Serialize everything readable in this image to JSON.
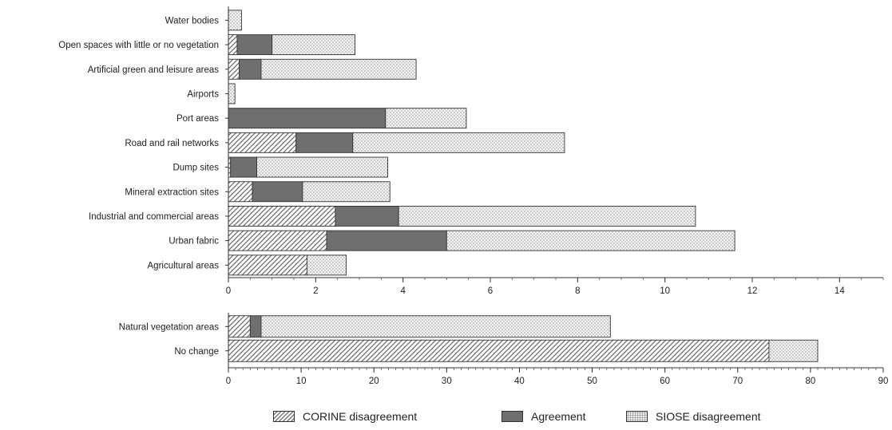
{
  "chart_data": [
    {
      "type": "bar",
      "orientation": "horizontal",
      "stacked": true,
      "categories": [
        "Water bodies",
        "Open spaces with little or no vegetation",
        "Artificial green and leisure areas",
        "Airports",
        "Port areas",
        "Road and rail networks",
        "Dump sites",
        "Mineral extraction sites",
        "Industrial and commercial areas",
        "Urban fabric",
        "Agricultural areas"
      ],
      "series": [
        {
          "name": "CORINE disagreement",
          "values": [
            0.0,
            0.2,
            0.25,
            0.0,
            0.0,
            1.55,
            0.05,
            0.55,
            2.45,
            2.25,
            1.8
          ]
        },
        {
          "name": "Agreement",
          "values": [
            0.0,
            0.8,
            0.5,
            0.0,
            3.6,
            1.3,
            0.6,
            1.15,
            1.45,
            2.75,
            0.0
          ]
        },
        {
          "name": "SIOSE disagreement",
          "values": [
            0.3,
            1.9,
            3.55,
            0.15,
            1.85,
            4.85,
            3.0,
            2.0,
            6.8,
            6.6,
            0.9
          ]
        }
      ],
      "xlim": [
        0,
        15
      ],
      "ticks": [
        0,
        2,
        4,
        6,
        8,
        10,
        12,
        14
      ],
      "grid": false
    },
    {
      "type": "bar",
      "orientation": "horizontal",
      "stacked": true,
      "categories": [
        "Natural vegetation areas",
        "No change"
      ],
      "series": [
        {
          "name": "CORINE disagreement",
          "values": [
            3.0,
            74.3
          ]
        },
        {
          "name": "Agreement",
          "values": [
            1.5,
            0.0
          ]
        },
        {
          "name": "SIOSE disagreement",
          "values": [
            48.0,
            6.7
          ]
        }
      ],
      "xlim": [
        0,
        90
      ],
      "ticks": [
        0,
        10,
        20,
        30,
        40,
        50,
        60,
        70,
        80,
        90
      ],
      "grid": false
    }
  ],
  "legend": {
    "position": "bottom",
    "items": [
      {
        "label": "CORINE disagreement",
        "style": "hatched"
      },
      {
        "label": "Agreement",
        "style": "dark-gray",
        "color": "#6f6f6f"
      },
      {
        "label": "SIOSE disagreement",
        "style": "dotted"
      }
    ]
  }
}
